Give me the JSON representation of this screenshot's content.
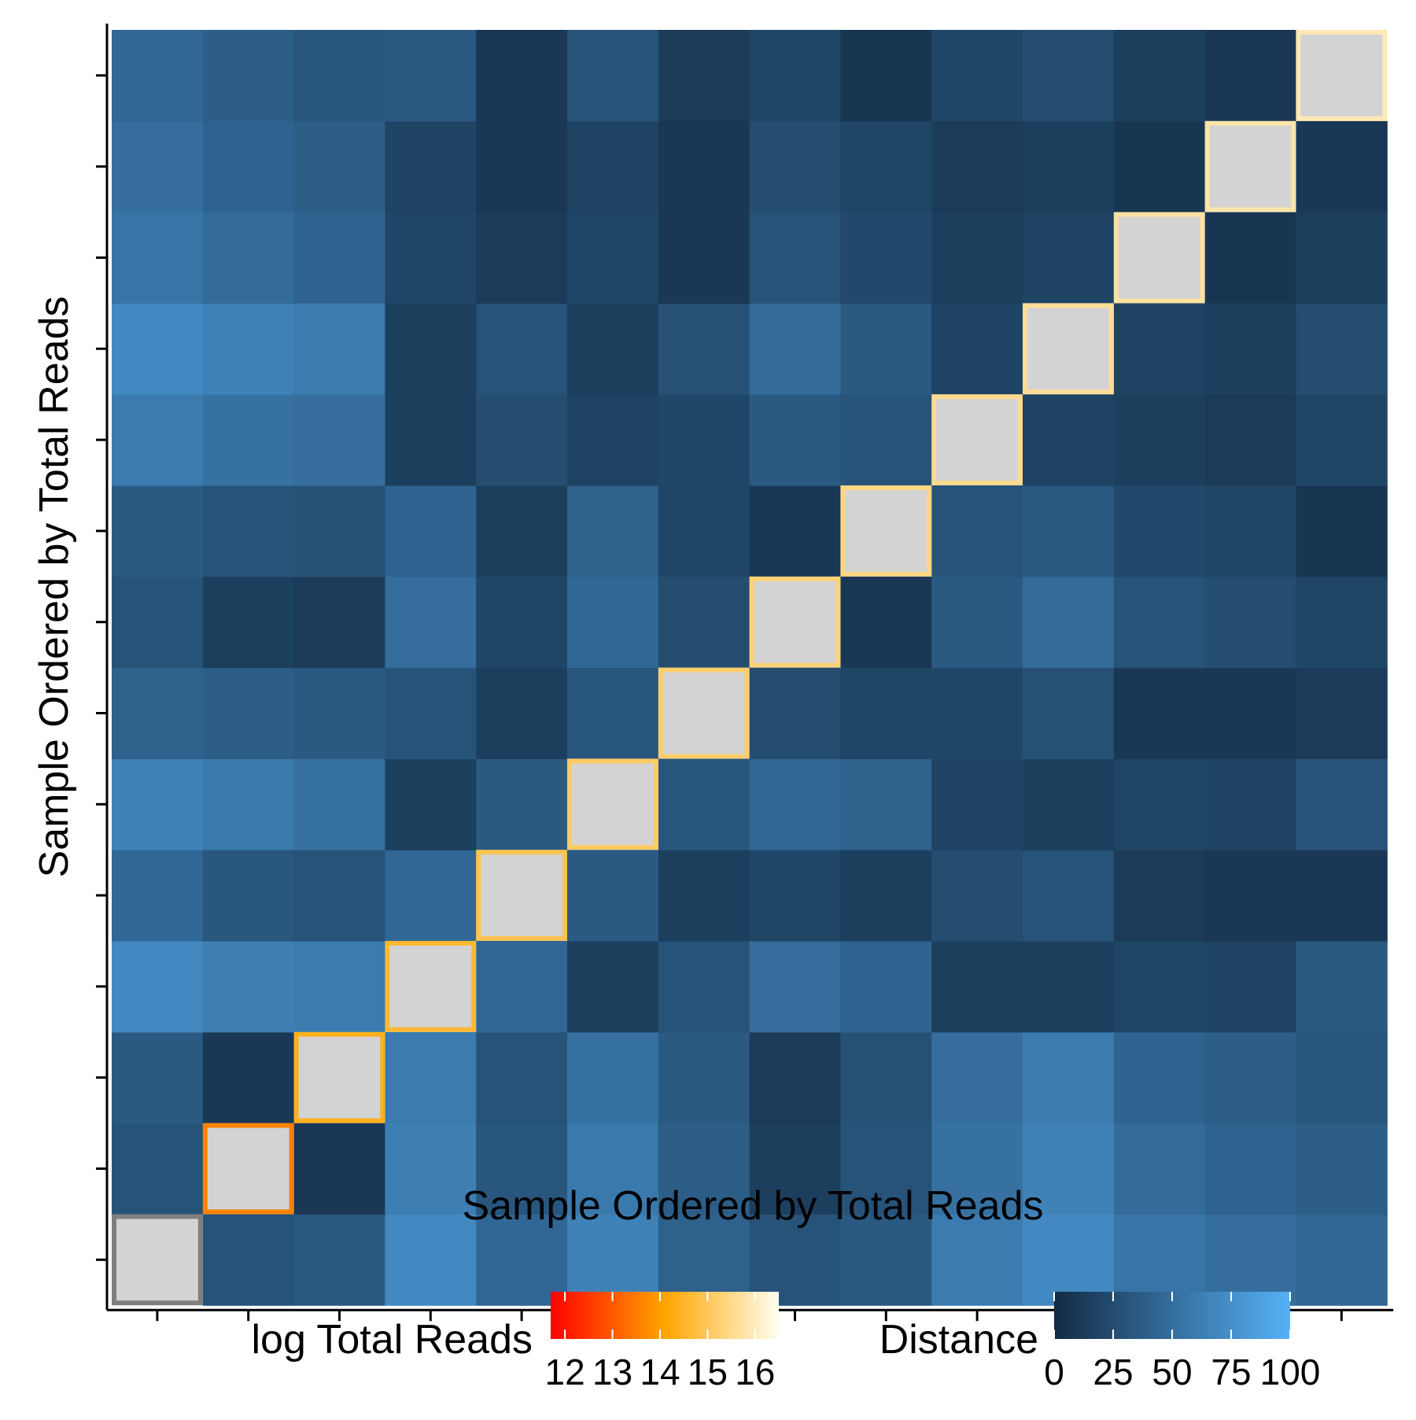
{
  "chart_data": {
    "type": "heatmap",
    "xlabel": "Sample Ordered by Total Reads",
    "ylabel": "Sample Ordered by Total Reads",
    "x_tick_labels": [],
    "y_tick_labels": [],
    "n_samples": 14,
    "grid": false,
    "legend_position": "bottom",
    "distance_matrix": [
      [
        null,
        30,
        35,
        70,
        45,
        65,
        40,
        30,
        35,
        60,
        70,
        55,
        50,
        45
      ],
      [
        30,
        null,
        10,
        62,
        32,
        58,
        38,
        15,
        30,
        52,
        65,
        48,
        42,
        38
      ],
      [
        35,
        10,
        null,
        60,
        30,
        52,
        35,
        12,
        28,
        50,
        60,
        42,
        38,
        32
      ],
      [
        70,
        62,
        60,
        null,
        45,
        15,
        30,
        50,
        42,
        15,
        15,
        20,
        18,
        35
      ],
      [
        45,
        32,
        30,
        45,
        null,
        35,
        15,
        20,
        15,
        25,
        30,
        12,
        10,
        10
      ],
      [
        65,
        58,
        52,
        15,
        35,
        null,
        32,
        45,
        40,
        18,
        15,
        20,
        18,
        30
      ],
      [
        40,
        38,
        35,
        30,
        15,
        32,
        null,
        25,
        20,
        20,
        28,
        10,
        10,
        12
      ],
      [
        30,
        15,
        12,
        50,
        20,
        45,
        25,
        null,
        10,
        35,
        48,
        30,
        25,
        20
      ],
      [
        35,
        30,
        28,
        42,
        15,
        40,
        20,
        10,
        null,
        30,
        35,
        22,
        20,
        8
      ],
      [
        60,
        52,
        50,
        15,
        25,
        18,
        20,
        35,
        30,
        null,
        18,
        15,
        12,
        20
      ],
      [
        70,
        65,
        60,
        15,
        30,
        15,
        28,
        48,
        35,
        18,
        null,
        18,
        15,
        25
      ],
      [
        55,
        48,
        42,
        20,
        12,
        20,
        10,
        30,
        22,
        15,
        18,
        null,
        8,
        15
      ],
      [
        50,
        42,
        38,
        18,
        10,
        18,
        10,
        25,
        20,
        12,
        15,
        8,
        null,
        10
      ],
      [
        45,
        38,
        32,
        35,
        10,
        30,
        12,
        20,
        8,
        20,
        25,
        15,
        10,
        null
      ]
    ],
    "diagonal_log_total_reads": [
      null,
      13.6,
      14.4,
      14.6,
      14.9,
      15.1,
      15.2,
      15.3,
      15.4,
      15.5,
      15.6,
      15.7,
      15.8,
      15.9
    ],
    "diagonal_missing_color": "#d3d3d3",
    "diagonal_na_outline_color": "#7f7f7f",
    "fill_legend": {
      "title": "Distance",
      "ticks": [
        0,
        25,
        50,
        75,
        100
      ],
      "tick_labels": [
        "0",
        "25",
        "50",
        "75",
        "100"
      ],
      "range": [
        0,
        100
      ],
      "color_low": "#132b43",
      "color_high": "#56b1f7"
    },
    "outline_legend": {
      "title": "log Total Reads",
      "ticks": [
        12,
        13,
        14,
        15,
        16
      ],
      "tick_labels": [
        "12",
        "13",
        "14",
        "15",
        "16"
      ],
      "range": [
        11.7,
        16.5
      ],
      "colors": [
        "#ff0000",
        "#ffa500",
        "#fffff0"
      ]
    }
  }
}
